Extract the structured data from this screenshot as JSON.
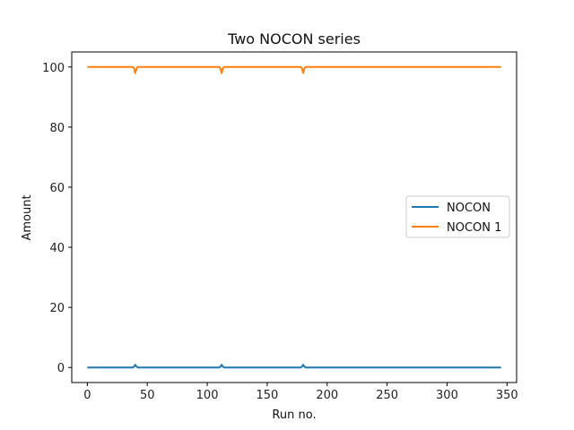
{
  "chart_data": {
    "type": "line",
    "title": "Two NOCON series",
    "xlabel": "Run no.",
    "ylabel": "Amount",
    "xlim": [
      -13,
      358
    ],
    "ylim": [
      -5,
      105
    ],
    "xticks": [
      0,
      50,
      100,
      150,
      200,
      250,
      300,
      350
    ],
    "yticks": [
      0,
      20,
      40,
      60,
      80,
      100
    ],
    "grid": false,
    "legend_position": "center-right",
    "x": [
      0,
      38,
      39,
      40,
      41,
      42,
      110,
      111,
      112,
      113,
      114,
      178,
      179,
      180,
      181,
      182,
      345
    ],
    "series": [
      {
        "name": "NOCON",
        "color": "#1f77b4",
        "values": [
          0,
          0,
          0.3,
          0.9,
          0.3,
          0,
          0,
          0.3,
          0.9,
          0.3,
          0,
          0,
          0.3,
          0.9,
          0.3,
          0,
          0
        ]
      },
      {
        "name": "NOCON 1",
        "color": "#ff7f0e",
        "values": [
          100,
          100,
          99.5,
          98,
          99.5,
          100,
          100,
          99.5,
          98,
          99.5,
          100,
          100,
          99.5,
          98,
          99.5,
          100,
          100
        ]
      }
    ]
  }
}
